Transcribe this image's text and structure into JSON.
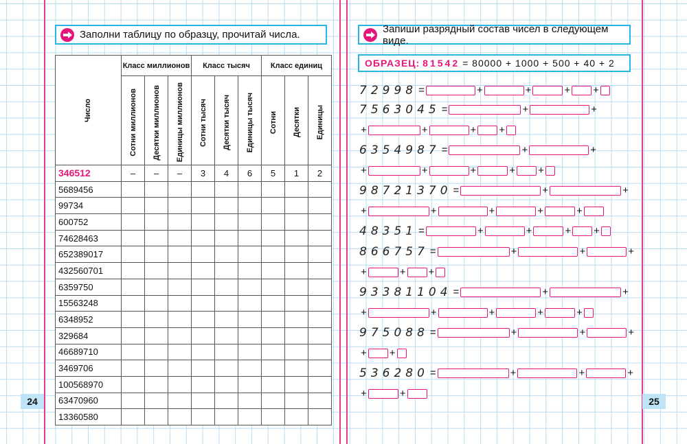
{
  "left_page": {
    "instruction": "Заполни таблицу по образцу, прочитай числа.",
    "page_number": "24",
    "table": {
      "row_header": "Число",
      "class_headers": [
        "Класс миллионов",
        "Класс тысяч",
        "Класс единиц"
      ],
      "sub_headers": [
        "Сотни миллионов",
        "Десятки миллионов",
        "Единицы миллионов",
        "Сотни тысяч",
        "Десятки тысяч",
        "Единицы тысяч",
        "Сотни",
        "Десятки",
        "Единицы"
      ],
      "sample_number": "346512",
      "sample_digits": [
        "–",
        "–",
        "–",
        "3",
        "4",
        "6",
        "5",
        "1",
        "2"
      ],
      "numbers": [
        "5689456",
        "99734",
        "600752",
        "74628463",
        "652389017",
        "432560701",
        "6359750",
        "15563248",
        "6348952",
        "329684",
        "46689710",
        "3469706",
        "100568970",
        "63470960",
        "13360580"
      ]
    }
  },
  "right_page": {
    "instruction": "Запиши разрядный состав чисел в следующем виде.",
    "page_number": "25",
    "sample": {
      "label": "ОБРАЗЕЦ:",
      "number": "81542",
      "expression": "= 80000 + 1000 + 500 + 40 + 2"
    },
    "exercises": [
      "72998",
      "7563045",
      "6354987",
      "98721370",
      "48351",
      "866757",
      "93381104",
      "975088",
      "536280"
    ],
    "eq": "=",
    "plus": "+"
  },
  "colors": {
    "accent": "#e5157a",
    "frame": "#28b4e6",
    "grid": "#b8dcf3",
    "page_num_bg": "#bfe4f8"
  }
}
